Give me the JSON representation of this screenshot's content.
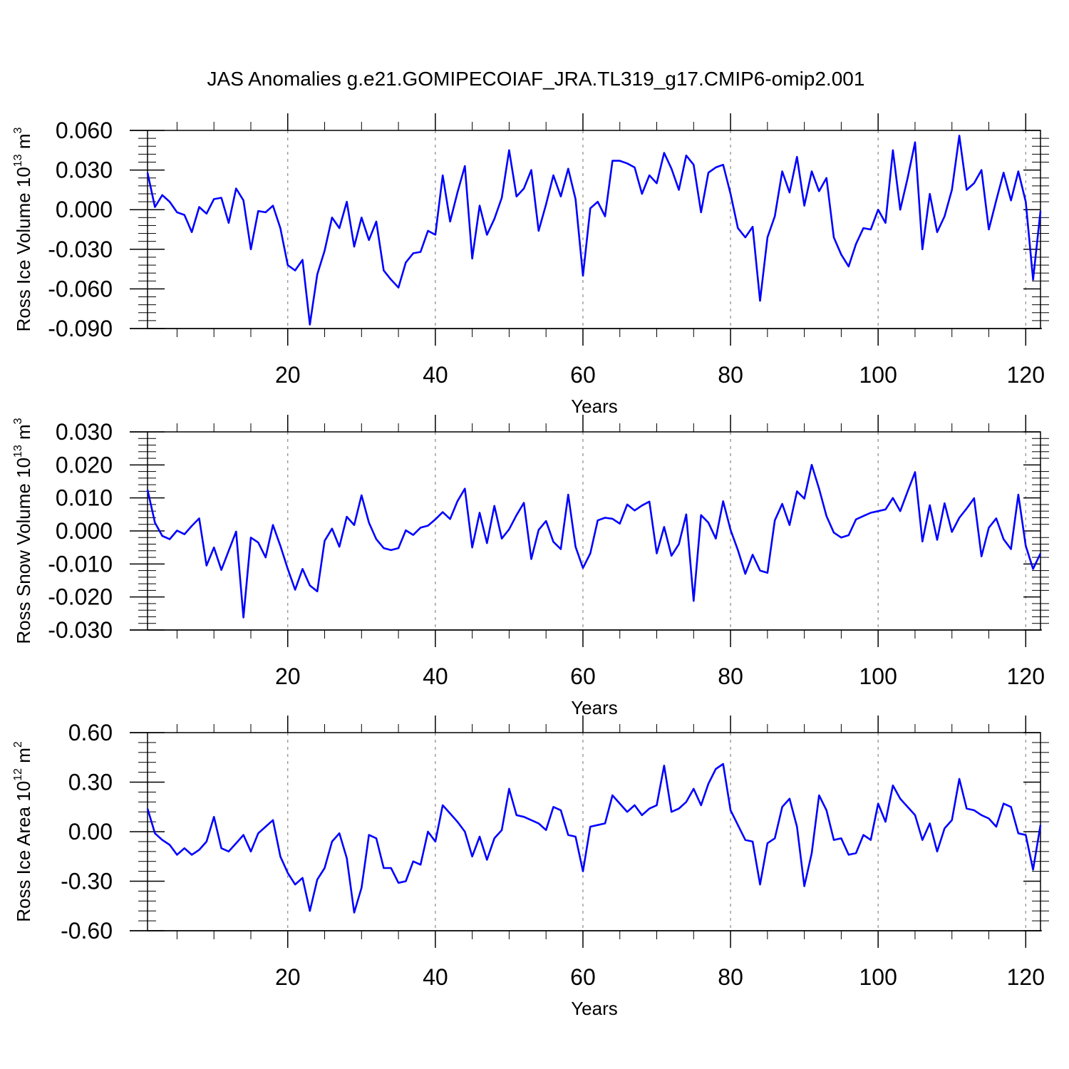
{
  "figure_title": "JAS Anomalies g.e21.GOMIPECOIAF_JRA.TL319_g17.CMIP6-omip2.001",
  "colors": {
    "line": "#0000ff",
    "axis": "#000000",
    "grid": "#888888"
  },
  "chart_data": [
    {
      "type": "line",
      "title": "JAS Anomalies g.e21.GOMIPECOIAF_JRA.TL319_g17.CMIP6-omip2.001",
      "xlabel": "Years",
      "ylabel_main": "Ross Ice Volume 10",
      "ylabel_exp": "13",
      "ylabel_unit": " m",
      "ylabel_unit_exp": "3",
      "xlim": [
        1,
        122
      ],
      "ylim": [
        -0.09,
        0.06
      ],
      "yticks": [
        -0.09,
        -0.06,
        -0.03,
        0.0,
        0.03,
        0.06
      ],
      "ytick_labels": [
        "-0.090",
        "-0.060",
        "-0.030",
        "0.000",
        "0.030",
        "0.060"
      ],
      "xticks": [
        20,
        40,
        60,
        80,
        100,
        120
      ],
      "xtick_labels": [
        "20",
        "40",
        "60",
        "80",
        "100",
        "120"
      ],
      "grid_x": [
        20,
        40,
        60,
        80,
        100,
        120
      ],
      "series": [
        {
          "name": "Ross Ice Volume",
          "values": [
            0.028,
            0.002,
            0.011,
            0.006,
            -0.002,
            -0.004,
            -0.017,
            0.002,
            -0.003,
            0.008,
            0.009,
            -0.01,
            0.016,
            0.007,
            -0.03,
            -0.001,
            -0.002,
            0.003,
            -0.014,
            -0.042,
            -0.046,
            -0.038,
            -0.087,
            -0.049,
            -0.031,
            -0.006,
            -0.014,
            0.006,
            -0.028,
            -0.006,
            -0.023,
            -0.009,
            -0.046,
            -0.053,
            -0.059,
            -0.04,
            -0.033,
            -0.032,
            -0.016,
            -0.019,
            0.026,
            -0.009,
            0.013,
            0.033,
            -0.037,
            0.003,
            -0.019,
            -0.007,
            0.009,
            0.045,
            0.01,
            0.016,
            0.03,
            -0.016,
            0.004,
            0.026,
            0.01,
            0.031,
            0.008,
            -0.05,
            0.001,
            0.006,
            -0.005,
            0.037,
            0.037,
            0.035,
            0.032,
            0.012,
            0.026,
            0.02,
            0.043,
            0.031,
            0.015,
            0.041,
            0.034,
            -0.002,
            0.028,
            0.032,
            0.034,
            0.012,
            -0.014,
            -0.021,
            -0.013,
            -0.069,
            -0.021,
            -0.005,
            0.029,
            0.013,
            0.04,
            0.003,
            0.029,
            0.014,
            0.024,
            -0.021,
            -0.034,
            -0.043,
            -0.026,
            -0.014,
            -0.015,
            0.0,
            -0.01,
            0.045,
            0.0,
            0.024,
            0.051,
            -0.03,
            0.012,
            -0.017,
            -0.005,
            0.015,
            0.056,
            0.015,
            0.02,
            0.03,
            -0.015,
            0.007,
            0.028,
            0.007,
            0.029,
            0.006,
            -0.053,
            -0.001
          ]
        }
      ]
    },
    {
      "type": "line",
      "xlabel": "Years",
      "ylabel_main": "Ross Snow Volume 10",
      "ylabel_exp": "13",
      "ylabel_unit": " m",
      "ylabel_unit_exp": "3",
      "xlim": [
        1,
        122
      ],
      "ylim": [
        -0.03,
        0.03
      ],
      "yticks": [
        -0.03,
        -0.02,
        -0.01,
        0.0,
        0.01,
        0.02,
        0.03
      ],
      "ytick_labels": [
        "-0.030",
        "-0.020",
        "-0.010",
        "0.000",
        "0.010",
        "0.020",
        "0.030"
      ],
      "xticks": [
        20,
        40,
        60,
        80,
        100,
        120
      ],
      "xtick_labels": [
        "20",
        "40",
        "60",
        "80",
        "100",
        "120"
      ],
      "grid_x": [
        20,
        40,
        60,
        80,
        100,
        120
      ],
      "series": [
        {
          "name": "Ross Snow Volume",
          "values": [
            0.0125,
            0.0025,
            -0.0015,
            -0.0025,
            0.0001,
            -0.001,
            0.0015,
            0.0038,
            -0.0105,
            -0.005,
            -0.0118,
            -0.006,
            -0.0002,
            -0.0262,
            -0.002,
            -0.0035,
            -0.008,
            0.0018,
            -0.0045,
            -0.0115,
            -0.0178,
            -0.0115,
            -0.0165,
            -0.0183,
            -0.003,
            0.0007,
            -0.0048,
            0.0043,
            0.0018,
            0.0108,
            0.0025,
            -0.0025,
            -0.0052,
            -0.0058,
            -0.0052,
            0.0002,
            -0.0012,
            0.001,
            0.0016,
            0.0035,
            0.0057,
            0.0036,
            0.009,
            0.0128,
            -0.005,
            0.0055,
            -0.0037,
            0.0076,
            -0.0023,
            0.0005,
            0.0048,
            0.0085,
            -0.0085,
            0.0003,
            0.003,
            -0.0033,
            -0.0055,
            0.011,
            -0.0048,
            -0.0112,
            -0.0068,
            0.0032,
            0.004,
            0.0037,
            0.0022,
            0.008,
            0.0062,
            0.0077,
            0.0089,
            -0.0068,
            0.0012,
            -0.0075,
            -0.004,
            0.005,
            -0.0212,
            0.0048,
            0.0025,
            -0.0023,
            0.009,
            0.0003,
            -0.0058,
            -0.013,
            -0.0072,
            -0.012,
            -0.0127,
            0.0032,
            0.0082,
            0.0018,
            0.012,
            0.0098,
            0.02,
            0.0128,
            0.0045,
            -0.0005,
            -0.002,
            -0.0013,
            0.0035,
            0.0045,
            0.0055,
            0.006,
            0.0065,
            0.01,
            0.006,
            0.012,
            0.0178,
            -0.0032,
            0.0078,
            -0.0027,
            0.0084,
            -0.0003,
            0.004,
            0.0068,
            0.0099,
            -0.0077,
            0.001,
            0.0038,
            -0.0025,
            -0.0055,
            0.011,
            -0.0045,
            -0.0115,
            -0.0068
          ]
        }
      ]
    },
    {
      "type": "line",
      "xlabel": "Years",
      "ylabel_main": "Ross Ice Area 10",
      "ylabel_exp": "12",
      "ylabel_unit": " m",
      "ylabel_unit_exp": "2",
      "xlim": [
        1,
        122
      ],
      "ylim": [
        -0.6,
        0.6
      ],
      "yticks": [
        -0.6,
        -0.3,
        0.0,
        0.3,
        0.6
      ],
      "ytick_labels": [
        "-0.60",
        "-0.30",
        "0.00",
        "0.30",
        "0.60"
      ],
      "xticks": [
        20,
        40,
        60,
        80,
        100,
        120
      ],
      "xtick_labels": [
        "20",
        "40",
        "60",
        "80",
        "100",
        "120"
      ],
      "grid_x": [
        20,
        40,
        60,
        80,
        100,
        120
      ],
      "series": [
        {
          "name": "Ross Ice Area",
          "values": [
            0.14,
            -0.01,
            -0.05,
            -0.08,
            -0.14,
            -0.1,
            -0.14,
            -0.11,
            -0.06,
            0.09,
            -0.1,
            -0.12,
            -0.07,
            -0.02,
            -0.12,
            -0.01,
            0.03,
            0.07,
            -0.15,
            -0.25,
            -0.32,
            -0.28,
            -0.48,
            -0.29,
            -0.22,
            -0.06,
            -0.01,
            -0.16,
            -0.49,
            -0.34,
            -0.02,
            -0.04,
            -0.22,
            -0.22,
            -0.31,
            -0.3,
            -0.18,
            -0.2,
            0.0,
            -0.06,
            0.16,
            0.11,
            0.06,
            0.0,
            -0.15,
            -0.03,
            -0.17,
            -0.04,
            0.01,
            0.26,
            0.1,
            0.09,
            0.07,
            0.05,
            0.01,
            0.15,
            0.13,
            -0.02,
            -0.03,
            -0.24,
            0.03,
            0.04,
            0.05,
            0.22,
            0.17,
            0.12,
            0.16,
            0.1,
            0.14,
            0.16,
            0.4,
            0.12,
            0.14,
            0.18,
            0.26,
            0.16,
            0.29,
            0.38,
            0.41,
            0.13,
            0.04,
            -0.05,
            -0.06,
            -0.32,
            -0.07,
            -0.04,
            0.15,
            0.2,
            0.03,
            -0.33,
            -0.13,
            0.22,
            0.13,
            -0.05,
            -0.04,
            -0.14,
            -0.13,
            -0.02,
            -0.05,
            0.17,
            0.06,
            0.28,
            0.2,
            0.15,
            0.1,
            -0.05,
            0.05,
            -0.12,
            0.02,
            0.07,
            0.32,
            0.14,
            0.13,
            0.1,
            0.08,
            0.03,
            0.17,
            0.15,
            -0.01,
            -0.02,
            -0.23,
            0.04
          ]
        }
      ]
    }
  ]
}
